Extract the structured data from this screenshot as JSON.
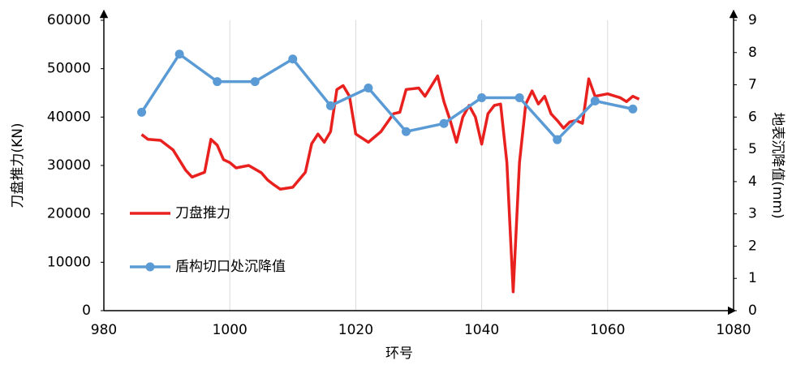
{
  "chart_data": {
    "type": "line",
    "x_label": "环号",
    "y_label": "刀盘推力(KN)",
    "y2_label": "地表沉降值(mm)",
    "xlim": [
      980,
      1080
    ],
    "xticks": [
      980,
      1000,
      1020,
      1040,
      1060,
      1080
    ],
    "ylim": [
      0,
      60000
    ],
    "yticks": [
      0,
      10000,
      20000,
      30000,
      40000,
      50000,
      60000
    ],
    "y2lim": [
      0,
      9
    ],
    "y2ticks": [
      0,
      1,
      2,
      3,
      4,
      5,
      6,
      7,
      8,
      9
    ],
    "grid": true,
    "legend": "left",
    "series": [
      {
        "name": "刀盘推力",
        "color": "#e8201e",
        "axis": "y",
        "markers": false,
        "x": [
          986,
          987,
          989,
          991,
          993,
          994,
          996,
          997,
          998,
          999,
          1000,
          1001,
          1003,
          1005,
          1006,
          1007,
          1008,
          1010,
          1012,
          1013,
          1014,
          1015,
          1016,
          1017,
          1018,
          1019,
          1020,
          1022,
          1024,
          1026,
          1027,
          1028,
          1030,
          1031,
          1033,
          1034,
          1035,
          1036,
          1037,
          1038,
          1039,
          1040,
          1041,
          1042,
          1043,
          1044,
          1045,
          1046,
          1047,
          1048,
          1049,
          1050,
          1051,
          1052,
          1053,
          1054,
          1055,
          1056,
          1057,
          1058,
          1060,
          1062,
          1063,
          1064,
          1065
        ],
        "values": [
          36400,
          35400,
          35200,
          33200,
          29000,
          27600,
          28600,
          35400,
          34200,
          31200,
          30600,
          29500,
          30000,
          28500,
          27000,
          26000,
          25100,
          25500,
          28600,
          34500,
          36500,
          34800,
          37000,
          45700,
          46500,
          44300,
          36500,
          34800,
          37000,
          40700,
          41000,
          45700,
          46000,
          44300,
          48500,
          43200,
          39300,
          34800,
          40000,
          42400,
          40000,
          34400,
          40700,
          42400,
          42700,
          30600,
          3900,
          30600,
          42700,
          45400,
          42700,
          44300,
          40700,
          39300,
          37700,
          39000,
          39300,
          38700,
          47900,
          44300,
          44800,
          44000,
          43200,
          44300,
          43700
        ]
      },
      {
        "name": "盾构切口处沉降值",
        "color": "#5b9bd5",
        "axis": "y2",
        "markers": true,
        "x": [
          986,
          992,
          998,
          1004,
          1010,
          1016,
          1022,
          1028,
          1034,
          1040,
          1046,
          1052,
          1058,
          1064
        ],
        "values": [
          6.15,
          7.95,
          7.1,
          7.1,
          7.8,
          6.35,
          6.9,
          5.55,
          5.8,
          6.6,
          6.6,
          5.3,
          6.5,
          6.25
        ]
      }
    ]
  }
}
